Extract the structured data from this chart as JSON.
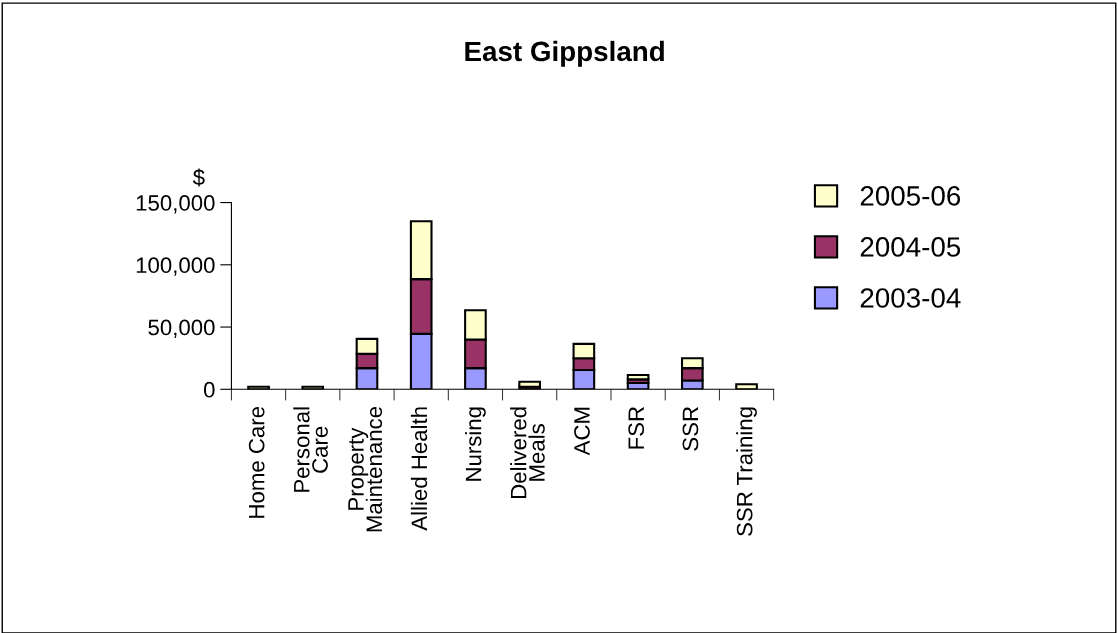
{
  "chart_data": {
    "type": "bar",
    "title": "East Gippsland",
    "ylabel": "$",
    "categories": [
      "Home Care",
      "Personal\nCare",
      "Property\nMaintenance",
      "Allied Health",
      "Nursing",
      "Delivered\nMeals",
      "ACM",
      "FSR",
      "SSR",
      "SSR Training"
    ],
    "stacked": true,
    "series": [
      {
        "name": "2003-04",
        "color": "#9999ff",
        "values": [
          null,
          null,
          17000,
          44500,
          17000,
          null,
          15500,
          5000,
          7000,
          null
        ]
      },
      {
        "name": "2004-05",
        "color": "#993366",
        "values": [
          null,
          null,
          11500,
          44000,
          23000,
          2000,
          9500,
          3000,
          10000,
          null
        ]
      },
      {
        "name": "2005-06",
        "color": "#ffffcc",
        "values": [
          2000,
          2000,
          12000,
          46500,
          23500,
          4000,
          11500,
          3500,
          8000,
          4000
        ]
      }
    ],
    "ylim": [
      0,
      150000
    ],
    "yticks": [
      {
        "value": 0,
        "label": "0"
      },
      {
        "value": 50000,
        "label": "50,000"
      },
      {
        "value": 100000,
        "label": "100,000"
      },
      {
        "value": 150000,
        "label": "150,000"
      }
    ],
    "grid": false,
    "legend": "right"
  }
}
